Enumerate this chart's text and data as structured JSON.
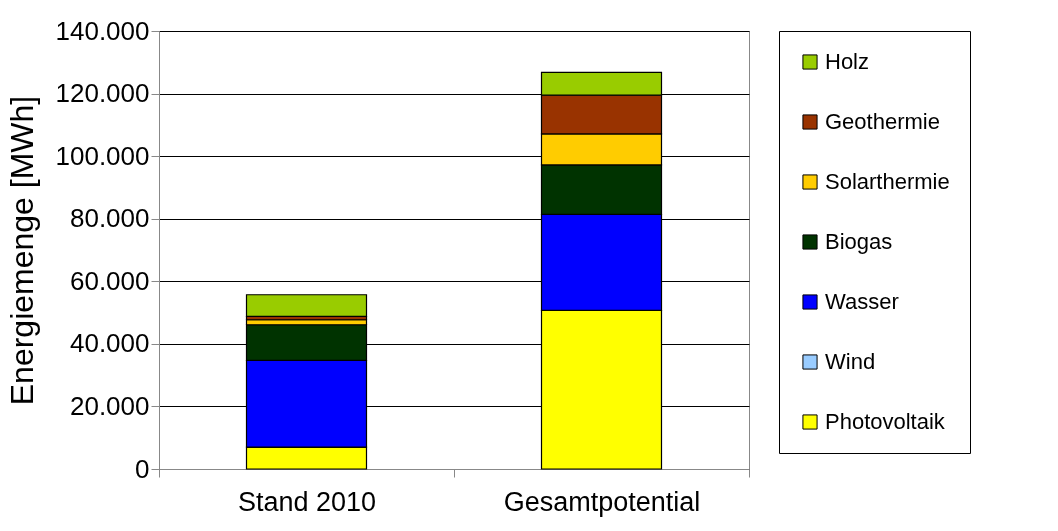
{
  "chart_data": {
    "type": "bar",
    "stacked": true,
    "ylabel": "Energiemenge [MWh]",
    "categories": [
      "Stand 2010",
      "Gesamtpotential"
    ],
    "series": [
      {
        "name": "Photovoltaik",
        "color": "#ffff00",
        "values": [
          7000,
          50700
        ]
      },
      {
        "name": "Wind",
        "color": "#99ccff",
        "values": [
          0,
          0
        ]
      },
      {
        "name": "Wasser",
        "color": "#0000ff",
        "values": [
          27700,
          30700
        ]
      },
      {
        "name": "Biogas",
        "color": "#003300",
        "values": [
          11400,
          15800
        ]
      },
      {
        "name": "Solarthermie",
        "color": "#ffcc00",
        "values": [
          1600,
          9900
        ]
      },
      {
        "name": "Geothermie",
        "color": "#993300",
        "values": [
          1100,
          12400
        ]
      },
      {
        "name": "Holz",
        "color": "#99cc00",
        "values": [
          6900,
          7300
        ]
      }
    ],
    "ylim": [
      0,
      140000
    ],
    "yticks": [
      {
        "value": 0,
        "label": "0"
      },
      {
        "value": 20000,
        "label": "20.000"
      },
      {
        "value": 40000,
        "label": "40.000"
      },
      {
        "value": 60000,
        "label": "60.000"
      },
      {
        "value": 80000,
        "label": "80.000"
      },
      {
        "value": 100000,
        "label": "100.000"
      },
      {
        "value": 120000,
        "label": "120.000"
      },
      {
        "value": 140000,
        "label": "140.000"
      }
    ],
    "grid": "y",
    "legend": "right"
  }
}
